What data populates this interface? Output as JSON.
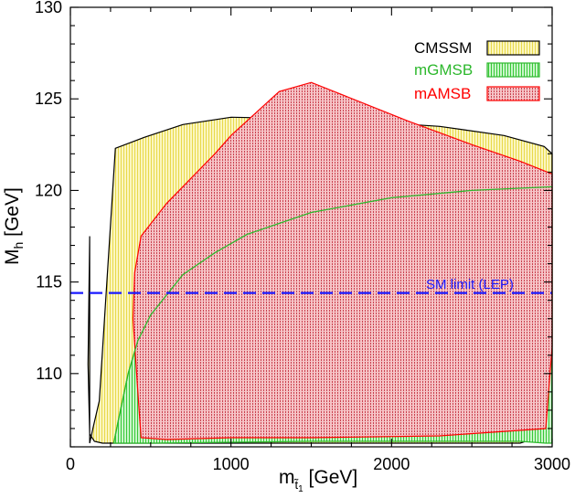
{
  "chart_data": {
    "type": "area",
    "xlim": [
      0,
      3000
    ],
    "ylim": [
      106,
      130
    ],
    "x_ticks": [
      "0",
      "1000",
      "2000",
      "3000"
    ],
    "y_ticks": [
      "110",
      "115",
      "120",
      "125",
      "130"
    ],
    "x_tick_values": [
      0,
      1000,
      2000,
      3000
    ],
    "y_tick_values": [
      110,
      115,
      120,
      125,
      130
    ],
    "xlabel": {
      "main": "m",
      "sub1": "t̃",
      "sub2": "1",
      "unit": " [GeV]"
    },
    "ylabel": {
      "main": "M",
      "sub": "h",
      "unit": " [GeV]"
    },
    "grid": false,
    "legend_position": "top-right",
    "series": [
      {
        "name": "CMSSM",
        "color": "#000000",
        "fill": "#f6ef9a",
        "x": [
          120,
          140,
          180,
          280,
          460,
          700,
          1000,
          1600,
          2300,
          2700,
          2950,
          3000,
          3000,
          2980,
          2940,
          2800,
          2000,
          1000,
          500,
          200,
          150,
          120,
          110,
          120
        ],
        "y": [
          106.2,
          107,
          108.5,
          122.3,
          122.9,
          123.6,
          124.0,
          123.9,
          123.5,
          123.0,
          122.4,
          122.0,
          111.0,
          107.5,
          106.6,
          106.2,
          106.2,
          106.2,
          106.2,
          106.2,
          106.3,
          106.7,
          110.5,
          117.5
        ]
      },
      {
        "name": "mGMSB",
        "color": "#2db82d",
        "fill": "#9ce59c",
        "x": [
          270,
          300,
          360,
          420,
          500,
          700,
          900,
          1100,
          1500,
          2000,
          2500,
          3000,
          3000,
          2960,
          2800,
          1500,
          500,
          270
        ],
        "y": [
          106.2,
          107.5,
          110.0,
          111.8,
          113.2,
          115.4,
          116.6,
          117.6,
          118.8,
          119.6,
          120.0,
          120.2,
          106.2,
          106.2,
          106.3,
          106.3,
          106.2,
          106.2
        ]
      },
      {
        "name": "mAMSB",
        "color": "#ff0000",
        "fill": "#f2a2aa",
        "x": [
          440,
          420,
          390,
          400,
          440,
          600,
          900,
          1000,
          1300,
          1500,
          1700,
          2100,
          2500,
          2800,
          3000,
          3000,
          2960,
          2300,
          1500,
          1000,
          600,
          440
        ],
        "y": [
          106.5,
          109,
          113,
          115.5,
          117.5,
          119.3,
          122.0,
          123.0,
          125.4,
          125.9,
          125.2,
          123.8,
          122.5,
          121.6,
          120.9,
          111.5,
          107.0,
          106.6,
          106.5,
          106.5,
          106.4,
          106.5
        ]
      }
    ],
    "mGMSB_boundary_curve": {
      "x": [
        270,
        300,
        360,
        420,
        500,
        700,
        900,
        1100,
        1500,
        2000,
        2500,
        3000
      ],
      "y": [
        106.2,
        107.5,
        110.0,
        111.8,
        113.2,
        115.4,
        116.6,
        117.6,
        118.8,
        119.6,
        120.0,
        120.2
      ]
    },
    "reference_line": {
      "label": "SM limit (LEP)",
      "y": 114.4,
      "color": "#1a1aff"
    }
  }
}
